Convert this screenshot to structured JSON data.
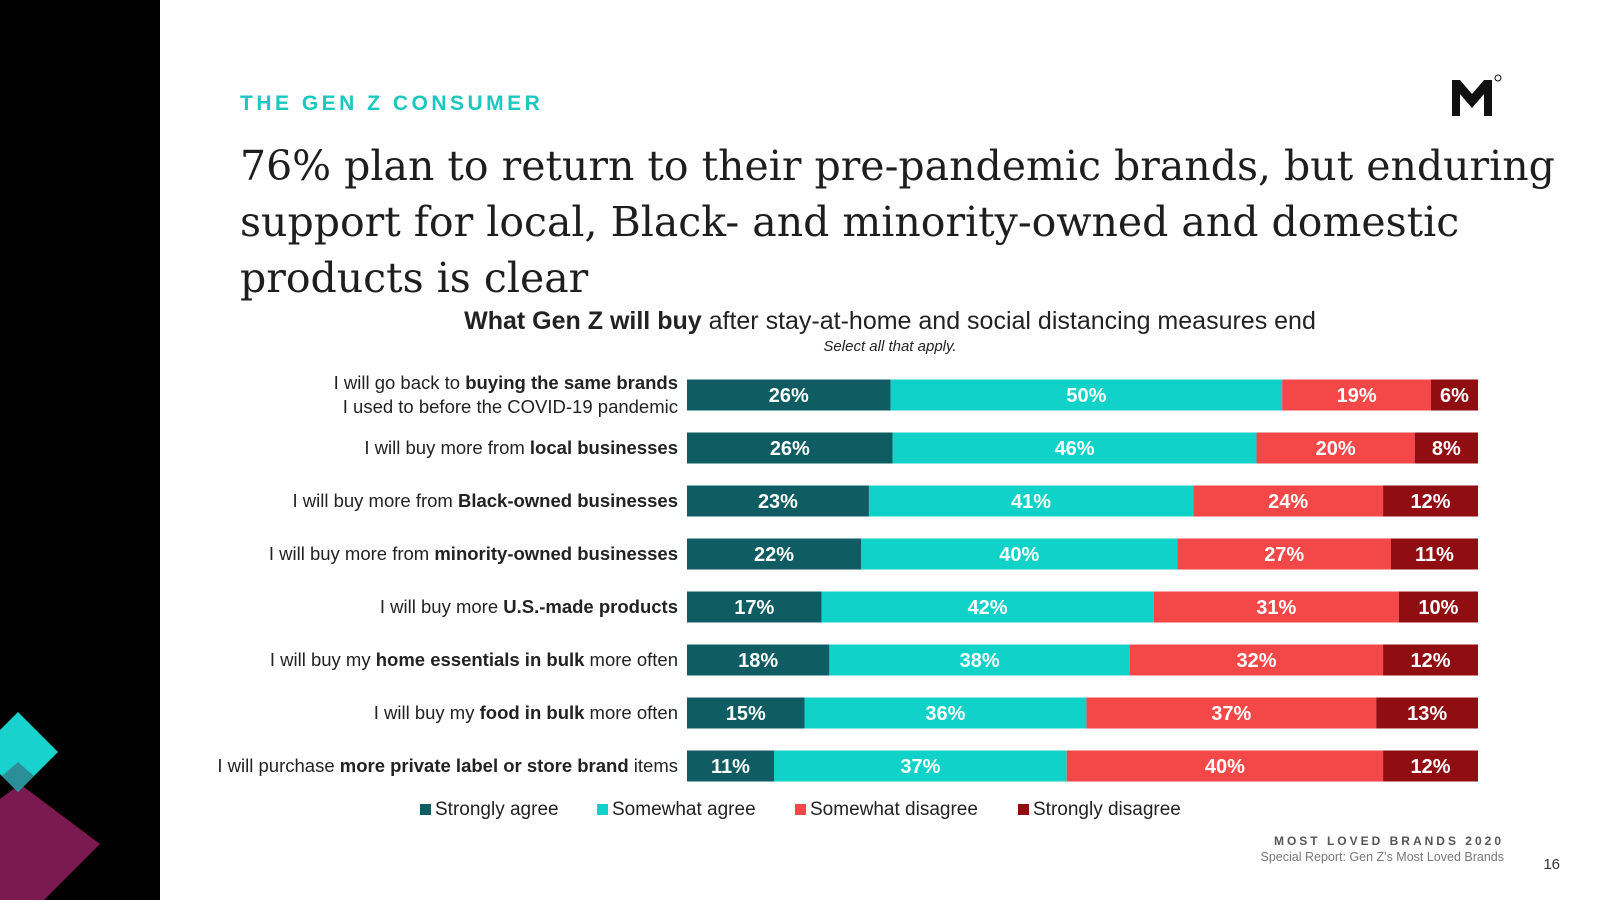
{
  "slide": {
    "section_label": "THE GEN Z CONSUMER",
    "headline": "76% plan to return to their pre-pandemic brands, but enduring support for local, Black- and minority-owned and domestic products is clear",
    "footer_brand": "MOST LOVED BRANDS 2020",
    "footer_subtitle": "Special Report: Gen Z's Most Loved Brands",
    "page_number": "16"
  },
  "colors": {
    "strongly_agree": "#0f5c62",
    "somewhat_agree": "#11d2c8",
    "somewhat_disagree": "#f44747",
    "strongly_disagree": "#900e12",
    "accent": "#1cc7c1",
    "sidebar_teal": "#1ad2cd",
    "sidebar_plum": "#7b1a50"
  },
  "chart_data": {
    "type": "bar",
    "orientation": "horizontal",
    "stacked": true,
    "title_bold": "What Gen Z will buy",
    "title_rest": "after stay-at-home and social distancing measures end",
    "subtitle": "Select all that apply.",
    "value_suffix": "%",
    "legend_position": "bottom",
    "categories": [
      [
        {
          "t": "I will go back to "
        },
        {
          "t": "buying the same brands",
          "b": true
        },
        {
          "br": true
        },
        {
          "t": "I used to before the COVID-19 pandemic"
        }
      ],
      [
        {
          "t": "I will buy more from "
        },
        {
          "t": "local businesses",
          "b": true
        }
      ],
      [
        {
          "t": "I will buy more from "
        },
        {
          "t": "Black-owned businesses",
          "b": true
        }
      ],
      [
        {
          "t": "I will buy more from "
        },
        {
          "t": "minority-owned businesses",
          "b": true
        }
      ],
      [
        {
          "t": "I will buy more "
        },
        {
          "t": "U.S.-made products",
          "b": true
        }
      ],
      [
        {
          "t": "I will buy my "
        },
        {
          "t": "home essentials in bulk",
          "b": true
        },
        {
          "t": " more often"
        }
      ],
      [
        {
          "t": "I will buy my "
        },
        {
          "t": "food in bulk",
          "b": true
        },
        {
          "t": " more often"
        }
      ],
      [
        {
          "t": "I will purchase "
        },
        {
          "t": "more private label or store brand",
          "b": true
        },
        {
          "t": " items"
        }
      ]
    ],
    "series": [
      {
        "name": "Strongly agree",
        "values": [
          26,
          26,
          23,
          22,
          17,
          18,
          15,
          11
        ]
      },
      {
        "name": "Somewhat agree",
        "values": [
          50,
          46,
          41,
          40,
          42,
          38,
          36,
          37
        ]
      },
      {
        "name": "Somewhat disagree",
        "values": [
          19,
          20,
          24,
          27,
          31,
          32,
          37,
          40
        ]
      },
      {
        "name": "Strongly disagree",
        "values": [
          6,
          8,
          12,
          11,
          10,
          12,
          13,
          12
        ]
      }
    ]
  }
}
